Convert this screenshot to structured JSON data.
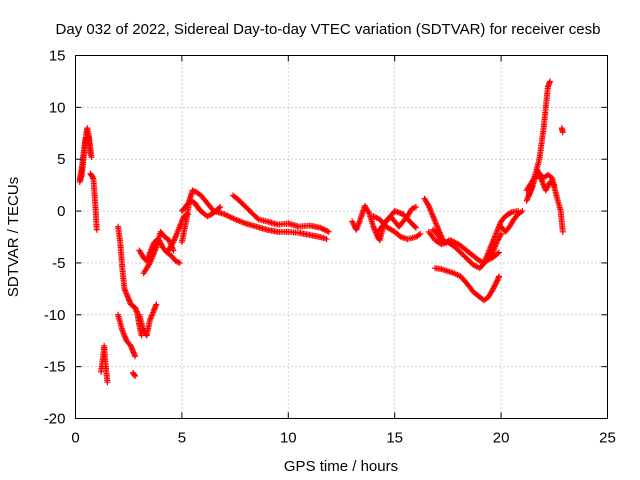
{
  "chart_data": {
    "type": "scatter",
    "title": "Day 032 of 2022, Sidereal Day-to-day VTEC variation (SDTVAR) for receiver cesb",
    "xlabel": "GPS time / hours",
    "ylabel": "SDTVAR / TECUs",
    "xlim": [
      0,
      25
    ],
    "ylim": [
      -20,
      15
    ],
    "xticks": [
      0,
      5,
      10,
      15,
      20,
      25
    ],
    "yticks": [
      -20,
      -15,
      -10,
      -5,
      0,
      5,
      10,
      15
    ],
    "grid": true,
    "marker": "+",
    "color": "#ff0000",
    "series": [
      {
        "name": "SDTVAR",
        "tracks": [
          [
            [
              0.2,
              3.0
            ],
            [
              0.3,
              4.2
            ],
            [
              0.4,
              6.0
            ],
            [
              0.5,
              7.4
            ],
            [
              0.55,
              8.0
            ],
            [
              0.6,
              7.5
            ],
            [
              0.65,
              6.8
            ],
            [
              0.7,
              6.0
            ],
            [
              0.75,
              5.2
            ]
          ],
          [
            [
              0.2,
              2.8
            ],
            [
              0.3,
              3.5
            ],
            [
              0.4,
              5.5
            ],
            [
              0.5,
              7.0
            ],
            [
              0.6,
              7.2
            ],
            [
              0.7,
              5.5
            ]
          ],
          [
            [
              0.7,
              3.6
            ],
            [
              0.8,
              3.3
            ],
            [
              0.85,
              3.0
            ],
            [
              0.9,
              1.5
            ],
            [
              0.95,
              0.0
            ],
            [
              1.0,
              -1.8
            ]
          ],
          [
            [
              1.2,
              -15.5
            ],
            [
              1.3,
              -14.0
            ],
            [
              1.35,
              -13.0
            ],
            [
              1.4,
              -14.5
            ],
            [
              1.45,
              -15.5
            ],
            [
              1.5,
              -16.5
            ]
          ],
          [
            [
              2.0,
              -1.5
            ],
            [
              2.1,
              -3.0
            ],
            [
              2.2,
              -5.5
            ],
            [
              2.3,
              -7.5
            ],
            [
              2.5,
              -8.5
            ],
            [
              2.6,
              -9.0
            ],
            [
              2.8,
              -9.3
            ],
            [
              2.9,
              -9.8
            ],
            [
              3.0,
              -11.0
            ],
            [
              3.1,
              -12.0
            ]
          ],
          [
            [
              2.0,
              -10.0
            ],
            [
              2.2,
              -11.5
            ],
            [
              2.4,
              -12.5
            ],
            [
              2.6,
              -13.0
            ],
            [
              2.7,
              -13.5
            ],
            [
              2.8,
              -14.0
            ]
          ],
          [
            [
              2.7,
              -15.6
            ],
            [
              2.8,
              -15.9
            ]
          ],
          [
            [
              3.0,
              -10.0
            ],
            [
              3.2,
              -11.5
            ],
            [
              3.35,
              -12.0
            ],
            [
              3.5,
              -10.5
            ],
            [
              3.7,
              -9.5
            ],
            [
              3.8,
              -9.0
            ]
          ],
          [
            [
              3.0,
              -3.8
            ],
            [
              3.2,
              -4.5
            ],
            [
              3.35,
              -4.8
            ],
            [
              3.5,
              -4.0
            ],
            [
              3.7,
              -3.0
            ],
            [
              3.9,
              -2.7
            ],
            [
              4.1,
              -3.5
            ],
            [
              4.3,
              -4.0
            ],
            [
              4.5,
              -4.3
            ],
            [
              4.7,
              -4.8
            ],
            [
              4.9,
              -5.0
            ]
          ],
          [
            [
              3.2,
              -6.0
            ],
            [
              3.5,
              -5.0
            ],
            [
              3.8,
              -3.5
            ],
            [
              4.0,
              -2.0
            ],
            [
              4.2,
              -2.5
            ],
            [
              4.4,
              -2.8
            ],
            [
              4.6,
              -3.8
            ]
          ],
          [
            [
              4.3,
              -4.0
            ],
            [
              4.6,
              -3.0
            ],
            [
              4.8,
              -2.0
            ],
            [
              5.0,
              -1.0
            ],
            [
              5.1,
              -0.5
            ],
            [
              5.3,
              -0.3
            ]
          ],
          [
            [
              5.0,
              -3.0
            ],
            [
              5.2,
              -1.0
            ],
            [
              5.35,
              1.0
            ],
            [
              5.5,
              2.0
            ],
            [
              5.7,
              1.8
            ],
            [
              5.9,
              1.5
            ],
            [
              6.1,
              1.0
            ],
            [
              6.3,
              0.5
            ],
            [
              6.5,
              0.0
            ]
          ],
          [
            [
              5.0,
              0.0
            ],
            [
              5.2,
              0.5
            ],
            [
              5.4,
              1.0
            ],
            [
              5.6,
              0.8
            ],
            [
              5.8,
              0.2
            ],
            [
              6.0,
              -0.2
            ],
            [
              6.2,
              -0.5
            ],
            [
              6.4,
              -0.3
            ],
            [
              6.6,
              0.0
            ],
            [
              6.8,
              0.4
            ]
          ],
          [
            [
              6.5,
              0.0
            ],
            [
              7.0,
              -0.3
            ],
            [
              7.5,
              -0.8
            ],
            [
              8.0,
              -1.2
            ],
            [
              8.5,
              -1.5
            ],
            [
              9.0,
              -1.8
            ],
            [
              9.5,
              -2.0
            ],
            [
              10.0,
              -2.0
            ],
            [
              10.5,
              -2.1
            ],
            [
              11.0,
              -2.3
            ],
            [
              11.5,
              -2.5
            ],
            [
              11.8,
              -2.7
            ]
          ],
          [
            [
              7.4,
              1.5
            ],
            [
              7.6,
              1.2
            ],
            [
              7.8,
              0.8
            ],
            [
              8.2,
              0.0
            ],
            [
              8.6,
              -0.8
            ],
            [
              9.0,
              -1.0
            ],
            [
              9.5,
              -1.3
            ],
            [
              10.0,
              -1.2
            ],
            [
              10.5,
              -1.5
            ],
            [
              11.0,
              -1.4
            ],
            [
              11.5,
              -1.6
            ],
            [
              11.9,
              -2.0
            ]
          ],
          [
            [
              13.0,
              -1.0
            ],
            [
              13.2,
              -1.8
            ],
            [
              13.4,
              -0.7
            ],
            [
              13.6,
              0.5
            ],
            [
              13.8,
              -0.2
            ],
            [
              14.0,
              -1.5
            ],
            [
              14.2,
              -2.5
            ],
            [
              14.3,
              -2.8
            ],
            [
              14.5,
              -1.2
            ],
            [
              14.8,
              -0.5
            ],
            [
              15.0,
              -1.0
            ],
            [
              15.2,
              -1.5
            ],
            [
              15.4,
              -1.0
            ],
            [
              15.6,
              -0.5
            ],
            [
              15.8,
              0.2
            ],
            [
              16.0,
              0.4
            ]
          ],
          [
            [
              14.0,
              -0.5
            ],
            [
              14.3,
              -0.8
            ],
            [
              14.6,
              -1.5
            ],
            [
              15.0,
              -2.0
            ],
            [
              15.3,
              -2.5
            ],
            [
              15.6,
              -2.7
            ],
            [
              16.0,
              -2.5
            ],
            [
              16.2,
              -2.2
            ]
          ],
          [
            [
              14.2,
              -2.0
            ],
            [
              14.6,
              -1.0
            ],
            [
              15.0,
              0.0
            ],
            [
              15.4,
              -0.3
            ],
            [
              15.8,
              -1.2
            ],
            [
              16.0,
              -1.6
            ]
          ],
          [
            [
              16.4,
              1.2
            ],
            [
              16.6,
              0.5
            ],
            [
              16.8,
              -0.5
            ],
            [
              17.0,
              -1.5
            ],
            [
              17.2,
              -2.5
            ],
            [
              17.3,
              -3.0
            ]
          ],
          [
            [
              16.8,
              -1.8
            ],
            [
              17.0,
              -2.2
            ],
            [
              17.2,
              -2.8
            ],
            [
              17.4,
              -3.0
            ],
            [
              17.6,
              -2.8
            ],
            [
              17.8,
              -3.0
            ],
            [
              18.0,
              -3.2
            ],
            [
              18.2,
              -3.5
            ],
            [
              18.5,
              -4.0
            ],
            [
              18.8,
              -4.5
            ],
            [
              19.0,
              -4.8
            ],
            [
              19.2,
              -5.0
            ],
            [
              19.4,
              -4.6
            ],
            [
              19.6,
              -4.0
            ],
            [
              19.8,
              -3.0
            ],
            [
              20.0,
              -2.2
            ]
          ],
          [
            [
              16.6,
              -2.0
            ],
            [
              16.9,
              -2.8
            ],
            [
              17.2,
              -3.2
            ],
            [
              17.5,
              -3.0
            ],
            [
              17.8,
              -3.4
            ],
            [
              18.1,
              -4.0
            ],
            [
              18.4,
              -4.6
            ],
            [
              18.7,
              -5.2
            ],
            [
              19.0,
              -5.5
            ],
            [
              19.3,
              -4.8
            ],
            [
              19.6,
              -4.5
            ],
            [
              19.9,
              -4.0
            ]
          ],
          [
            [
              16.9,
              -5.5
            ],
            [
              17.2,
              -5.6
            ],
            [
              17.5,
              -5.8
            ],
            [
              17.8,
              -6.0
            ],
            [
              18.1,
              -6.3
            ],
            [
              18.4,
              -7.0
            ],
            [
              18.7,
              -7.8
            ],
            [
              19.0,
              -8.3
            ],
            [
              19.2,
              -8.6
            ],
            [
              19.4,
              -8.3
            ],
            [
              19.6,
              -7.6
            ],
            [
              19.8,
              -6.8
            ],
            [
              19.9,
              -6.3
            ]
          ],
          [
            [
              19.2,
              -5.0
            ],
            [
              19.5,
              -3.5
            ],
            [
              19.8,
              -2.0
            ],
            [
              20.0,
              -1.0
            ],
            [
              20.2,
              -0.5
            ],
            [
              20.5,
              -0.1
            ],
            [
              20.8,
              0.0
            ]
          ],
          [
            [
              20.0,
              -1.5
            ],
            [
              20.2,
              -2.0
            ],
            [
              20.4,
              -1.5
            ],
            [
              20.6,
              -0.8
            ],
            [
              20.8,
              -0.3
            ],
            [
              21.0,
              0.0
            ]
          ],
          [
            [
              21.2,
              1.0
            ],
            [
              21.4,
              2.0
            ],
            [
              21.6,
              3.5
            ],
            [
              21.8,
              5.0
            ],
            [
              21.9,
              6.5
            ],
            [
              22.0,
              8.0
            ],
            [
              22.1,
              10.0
            ],
            [
              22.2,
              12.0
            ],
            [
              22.3,
              12.5
            ]
          ],
          [
            [
              21.2,
              2.0
            ],
            [
              21.5,
              3.0
            ],
            [
              21.8,
              3.6
            ],
            [
              22.0,
              3.2
            ],
            [
              22.2,
              3.5
            ],
            [
              22.4,
              3.2
            ],
            [
              22.6,
              1.5
            ],
            [
              22.8,
              0.0
            ],
            [
              22.9,
              -2.0
            ]
          ],
          [
            [
              21.3,
              1.5
            ],
            [
              21.5,
              2.5
            ],
            [
              21.7,
              4.0
            ],
            [
              21.9,
              3.0
            ],
            [
              22.1,
              2.0
            ],
            [
              22.3,
              2.8
            ],
            [
              22.5,
              2.5
            ]
          ],
          [
            [
              22.85,
              8.0
            ],
            [
              22.9,
              7.6
            ]
          ]
        ]
      }
    ]
  }
}
